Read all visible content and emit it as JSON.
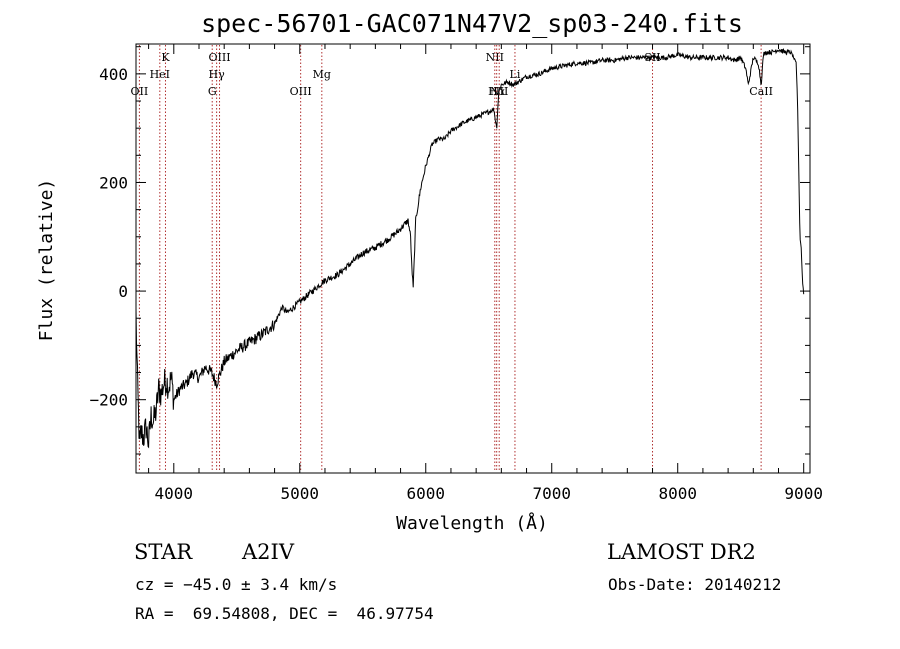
{
  "chart_data": {
    "type": "line",
    "title": "spec-56701-GAC071N47V2_sp03-240.fits",
    "xlabel": "Wavelength (Å)",
    "ylabel": "Flux (relative)",
    "xlim": [
      3700,
      9050
    ],
    "ylim": [
      -335,
      455
    ],
    "xticks": [
      4000,
      5000,
      6000,
      7000,
      8000,
      9000
    ],
    "yticks": [
      -200,
      0,
      200,
      400
    ],
    "grid": false,
    "line_color": "#000000",
    "marker_color": "#b03030",
    "series": [
      {
        "x": [
          3700,
          3710,
          3720,
          3730,
          3740,
          3760,
          3780,
          3800,
          3820,
          3840,
          3860,
          3880,
          3900,
          3920,
          3940,
          3960,
          3980,
          4000,
          4050,
          4100,
          4150,
          4200,
          4250,
          4300,
          4340,
          4400,
          4500,
          4600,
          4700,
          4800,
          4860,
          4900,
          5000,
          5100,
          5200,
          5300,
          5400,
          5500,
          5600,
          5700,
          5780,
          5820,
          5860,
          5880,
          5890,
          5900,
          5920,
          5960,
          6000,
          6050,
          6100,
          6150,
          6200,
          6300,
          6400,
          6500,
          6540,
          6563,
          6580,
          6600,
          6650,
          6700,
          6800,
          6900,
          7000,
          7100,
          7200,
          7300,
          7400,
          7500,
          7600,
          7700,
          7800,
          7900,
          8000,
          8100,
          8200,
          8300,
          8400,
          8450,
          8500,
          8540,
          8560,
          8600,
          8640,
          8662,
          8680,
          8700,
          8750,
          8800,
          8850,
          8900,
          8920,
          8940,
          8950,
          8960,
          8970,
          8980,
          8990,
          9000
        ],
        "y": [
          -40,
          -150,
          -230,
          -290,
          -260,
          -270,
          -250,
          -280,
          -230,
          -240,
          -220,
          -180,
          -190,
          -170,
          -165,
          -175,
          -160,
          -200,
          -180,
          -170,
          -150,
          -160,
          -140,
          -150,
          -170,
          -130,
          -110,
          -95,
          -80,
          -60,
          -30,
          -40,
          -20,
          0,
          20,
          30,
          50,
          70,
          80,
          95,
          110,
          120,
          130,
          100,
          40,
          5,
          130,
          190,
          230,
          270,
          280,
          280,
          295,
          310,
          320,
          330,
          335,
          300,
          370,
          380,
          385,
          380,
          395,
          400,
          410,
          415,
          420,
          420,
          425,
          425,
          430,
          430,
          430,
          430,
          435,
          430,
          430,
          430,
          430,
          425,
          430,
          410,
          380,
          430,
          420,
          380,
          435,
          440,
          440,
          445,
          440,
          440,
          430,
          420,
          360,
          230,
          100,
          80,
          20,
          -5
        ]
      }
    ],
    "lines": [
      {
        "label": "OII",
        "x": 3727,
        "row": 3
      },
      {
        "label": "HeI",
        "x": 3889,
        "row": 2
      },
      {
        "label": "K",
        "x": 3934,
        "row": 1
      },
      {
        "label": "G",
        "x": 4305,
        "row": 3
      },
      {
        "label": "Hγ",
        "x": 4340,
        "row": 2
      },
      {
        "label": "OIII",
        "x": 4363,
        "row": 1
      },
      {
        "label": "OIII",
        "x": 5007,
        "row": 3
      },
      {
        "label": "Mg",
        "x": 5175,
        "row": 2
      },
      {
        "label": "NII",
        "x": 6548,
        "row": 1
      },
      {
        "label": "Hα",
        "x": 6563,
        "row": 3
      },
      {
        "label": "NII",
        "x": 6583,
        "row": 3
      },
      {
        "label": "Li",
        "x": 6708,
        "row": 2
      },
      {
        "label": "SII",
        "x": 7800,
        "row": 1
      },
      {
        "label": "CaII",
        "x": 8662,
        "row": 3
      }
    ]
  },
  "info": {
    "obj_class": "STAR",
    "subclass": "A2IV",
    "survey": "LAMOST DR2",
    "cz": "cz = −45.0 ± 3.4 km/s",
    "obs_date": "Obs-Date: 20140212",
    "radec": "RA =  69.54808, DEC =  46.97754"
  }
}
